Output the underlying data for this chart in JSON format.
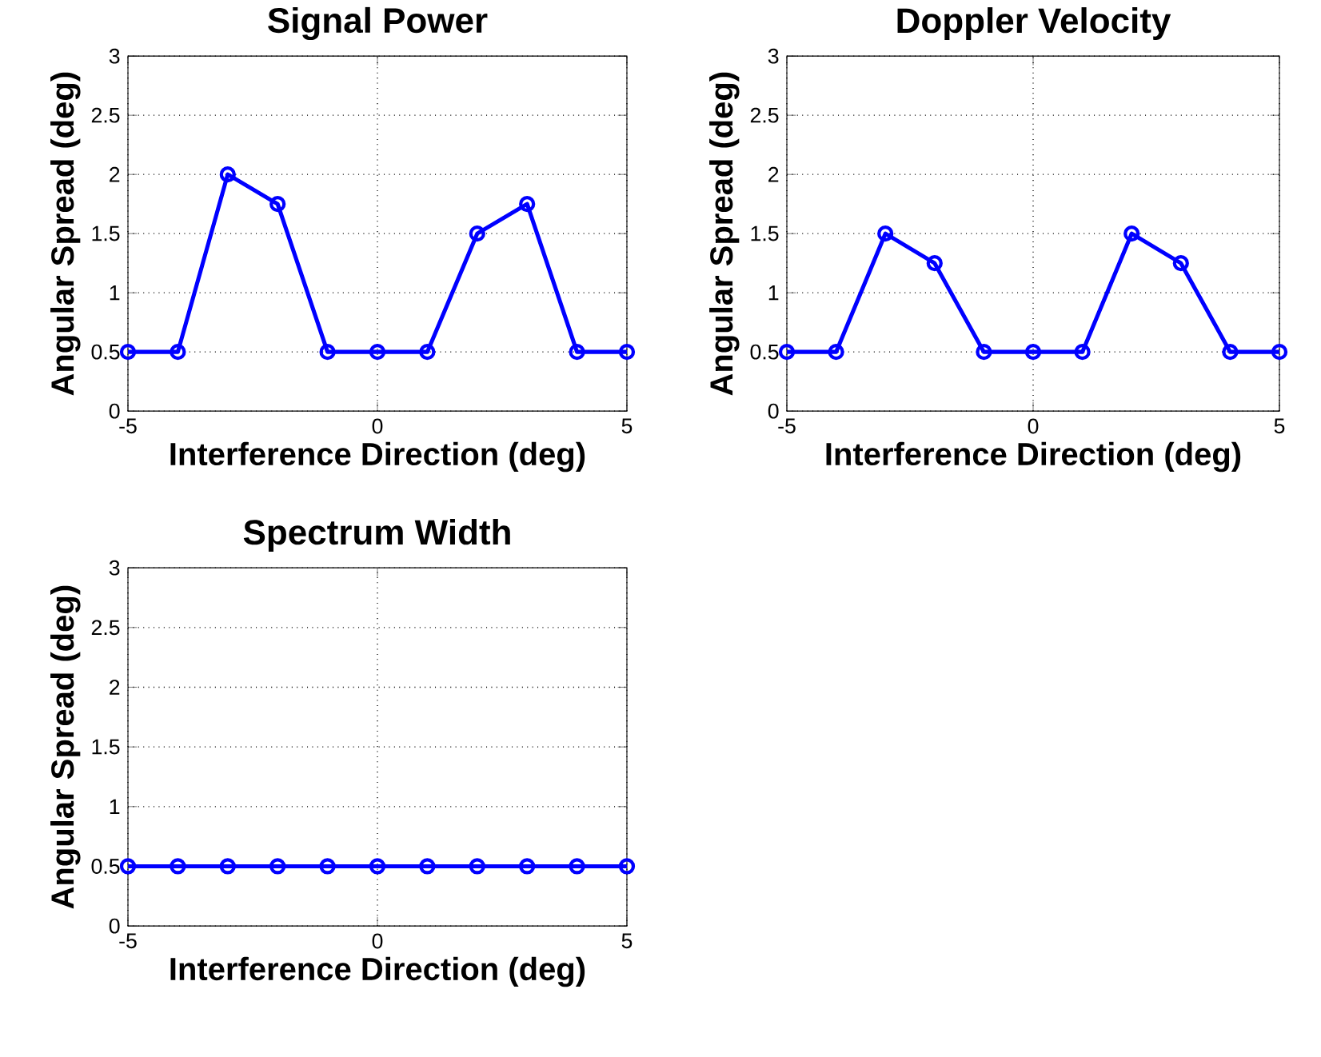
{
  "chart_data": [
    {
      "type": "line",
      "title": "Signal Power",
      "xlabel": "Interference Direction (deg)",
      "ylabel": "Angular Spread (deg)",
      "x": [
        -5,
        -4,
        -3,
        -2,
        -1,
        0,
        1,
        2,
        3,
        4,
        5
      ],
      "series": [
        {
          "color": "#0000ff",
          "values": [
            0.5,
            0.5,
            2,
            1.75,
            0.5,
            0.5,
            0.5,
            1.5,
            1.75,
            0.5,
            0.5
          ]
        }
      ],
      "xlim": [
        -5,
        5
      ],
      "xticks": [
        -5,
        0,
        5
      ],
      "ylim": [
        0,
        3
      ],
      "yticks": [
        0,
        0.5,
        1,
        1.5,
        2,
        2.5,
        3
      ],
      "grid": true,
      "marker": "circle",
      "line_style": "solid"
    },
    {
      "type": "line",
      "title": "Doppler Velocity",
      "xlabel": "Interference Direction (deg)",
      "ylabel": "Angular Spread (deg)",
      "x": [
        -5,
        -4,
        -3,
        -2,
        -1,
        0,
        1,
        2,
        3,
        4,
        5
      ],
      "series": [
        {
          "color": "#0000ff",
          "values": [
            0.5,
            0.5,
            1.5,
            1.25,
            0.5,
            0.5,
            0.5,
            1.5,
            1.25,
            0.5,
            0.5
          ]
        }
      ],
      "xlim": [
        -5,
        5
      ],
      "xticks": [
        -5,
        0,
        5
      ],
      "ylim": [
        0,
        3
      ],
      "yticks": [
        0,
        0.5,
        1,
        1.5,
        2,
        2.5,
        3
      ],
      "grid": true,
      "marker": "circle",
      "line_style": "solid"
    },
    {
      "type": "line",
      "title": "Spectrum Width",
      "xlabel": "Interference Direction (deg)",
      "ylabel": "Angular Spread (deg)",
      "x": [
        -5,
        -4,
        -3,
        -2,
        -1,
        0,
        1,
        2,
        3,
        4,
        5
      ],
      "series": [
        {
          "color": "#0000ff",
          "values": [
            0.5,
            0.5,
            0.5,
            0.5,
            0.5,
            0.5,
            0.5,
            0.5,
            0.5,
            0.5,
            0.5
          ]
        }
      ],
      "xlim": [
        -5,
        5
      ],
      "xticks": [
        -5,
        0,
        5
      ],
      "ylim": [
        0,
        3
      ],
      "yticks": [
        0,
        0.5,
        1,
        1.5,
        2,
        2.5,
        3
      ],
      "grid": true,
      "marker": "circle",
      "line_style": "solid"
    }
  ]
}
